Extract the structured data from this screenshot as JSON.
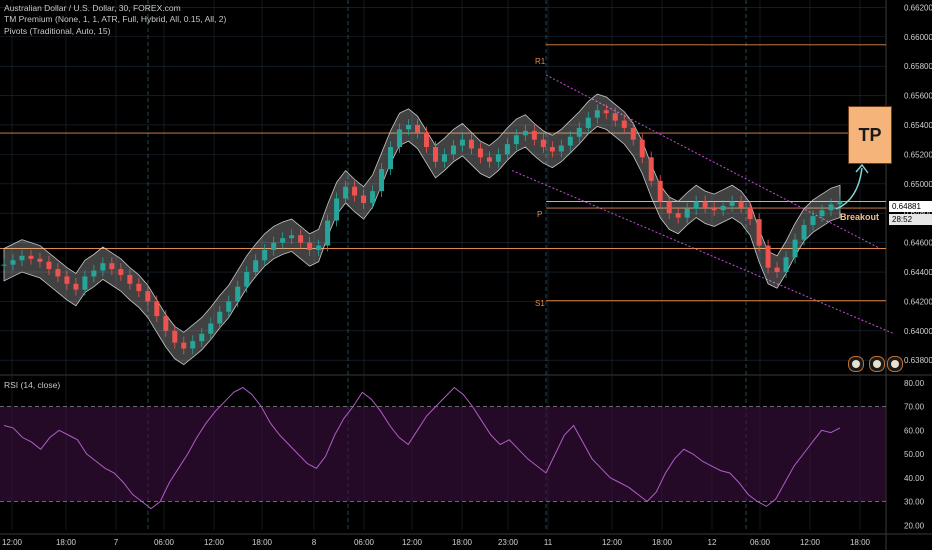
{
  "legend": {
    "line1": "Australian Dollar / U.S. Dollar, 30, FOREX.com",
    "line2": "TM Premium (None, 1, 1, ATR, Full, Hybrid, All, 0.15, All, 2)",
    "line3": "Pivots (Traditional, Auto, 15)"
  },
  "rsi_legend": "RSI (14, close)",
  "annotations": {
    "tp": "TP",
    "breakout": "Breakout"
  },
  "price_tags": {
    "last_price": "0.64881",
    "countdown": "28:52"
  },
  "pivot_labels": {
    "r1": "R1",
    "p": "P",
    "s1": "S1"
  },
  "colors": {
    "background": "#000000",
    "up_candle": "#26a69a",
    "down_candle": "#ef5350",
    "rsi_line": "#b05cc8",
    "rsi_band": "#3c1040",
    "pivot_line": "#e08a4a",
    "channel": "#c84bd8",
    "grid": "#1e2a38"
  },
  "chart_data": [
    {
      "type": "line",
      "title": "Australian Dollar / U.S. Dollar, 30, FOREX.com",
      "x_ticks": [
        "12:00",
        "18:00",
        "7",
        "06:00",
        "12:00",
        "18:00",
        "8",
        "06:00",
        "12:00",
        "18:00",
        "23:00",
        "11",
        "12:00",
        "18:00",
        "12",
        "06:00",
        "12:00",
        "18:00"
      ],
      "y_ticks": [
        "0.66200",
        "0.66000",
        "0.65800",
        "0.65600",
        "0.65400",
        "0.65200",
        "0.65000",
        "0.64800",
        "0.64600",
        "0.64400",
        "0.64200",
        "0.64000",
        "0.63800"
      ],
      "ylim": [
        0.6372,
        0.6625
      ],
      "pivots": {
        "R1": 0.65945,
        "P": 0.64835,
        "S1": 0.64205
      },
      "horizontal_levels": [
        0.65345,
        0.6488,
        0.6456
      ],
      "series": [
        {
          "values": [
            0.6445,
            0.6448,
            0.6451,
            0.6449,
            0.6447,
            0.6442,
            0.6437,
            0.6432,
            0.6428,
            0.6437,
            0.6441,
            0.6446,
            0.6442,
            0.6438,
            0.6432,
            0.6427,
            0.642,
            0.641,
            0.64,
            0.6392,
            0.6388,
            0.6393,
            0.6398,
            0.6405,
            0.6413,
            0.642,
            0.643,
            0.644,
            0.6448,
            0.6455,
            0.646,
            0.6463,
            0.6465,
            0.646,
            0.6455,
            0.6458,
            0.6475,
            0.649,
            0.6498,
            0.6492,
            0.6487,
            0.6495,
            0.651,
            0.6525,
            0.6537,
            0.654,
            0.6535,
            0.6525,
            0.6515,
            0.652,
            0.6526,
            0.653,
            0.6524,
            0.6518,
            0.6515,
            0.652,
            0.6527,
            0.6533,
            0.6536,
            0.653,
            0.6525,
            0.6522,
            0.6526,
            0.6532,
            0.6538,
            0.6545,
            0.655,
            0.6548,
            0.6543,
            0.6538,
            0.653,
            0.6518,
            0.6502,
            0.6488,
            0.648,
            0.6477,
            0.6483,
            0.6488,
            0.6484,
            0.6482,
            0.6485,
            0.6488,
            0.6484,
            0.6476,
            0.6458,
            0.6443,
            0.644,
            0.645,
            0.6462,
            0.6472,
            0.6478,
            0.6482,
            0.6486,
            0.6488
          ]
        }
      ]
    },
    {
      "type": "line",
      "title": "RSI (14, close)",
      "y_ticks": [
        "80.00",
        "70.00",
        "60.00",
        "50.00",
        "40.00",
        "30.00",
        "20.00"
      ],
      "ylim": [
        18,
        82
      ],
      "bands": [
        30,
        70
      ],
      "series": [
        {
          "values": [
            62,
            61,
            57,
            55,
            52,
            57,
            60,
            58,
            56,
            50,
            47,
            44,
            42,
            38,
            33,
            30,
            27,
            30,
            38,
            44,
            50,
            57,
            63,
            68,
            72,
            76,
            78,
            75,
            70,
            63,
            58,
            54,
            50,
            46,
            44,
            49,
            58,
            65,
            70,
            76,
            73,
            68,
            62,
            57,
            54,
            60,
            66,
            70,
            74,
            78,
            75,
            70,
            64,
            58,
            54,
            56,
            52,
            48,
            45,
            42,
            50,
            58,
            62,
            55,
            48,
            44,
            40,
            38,
            36,
            33,
            30,
            34,
            42,
            48,
            52,
            50,
            47,
            45,
            43,
            42,
            38,
            33,
            30,
            28,
            31,
            38,
            45,
            50,
            55,
            60,
            59,
            61
          ]
        }
      ]
    }
  ]
}
